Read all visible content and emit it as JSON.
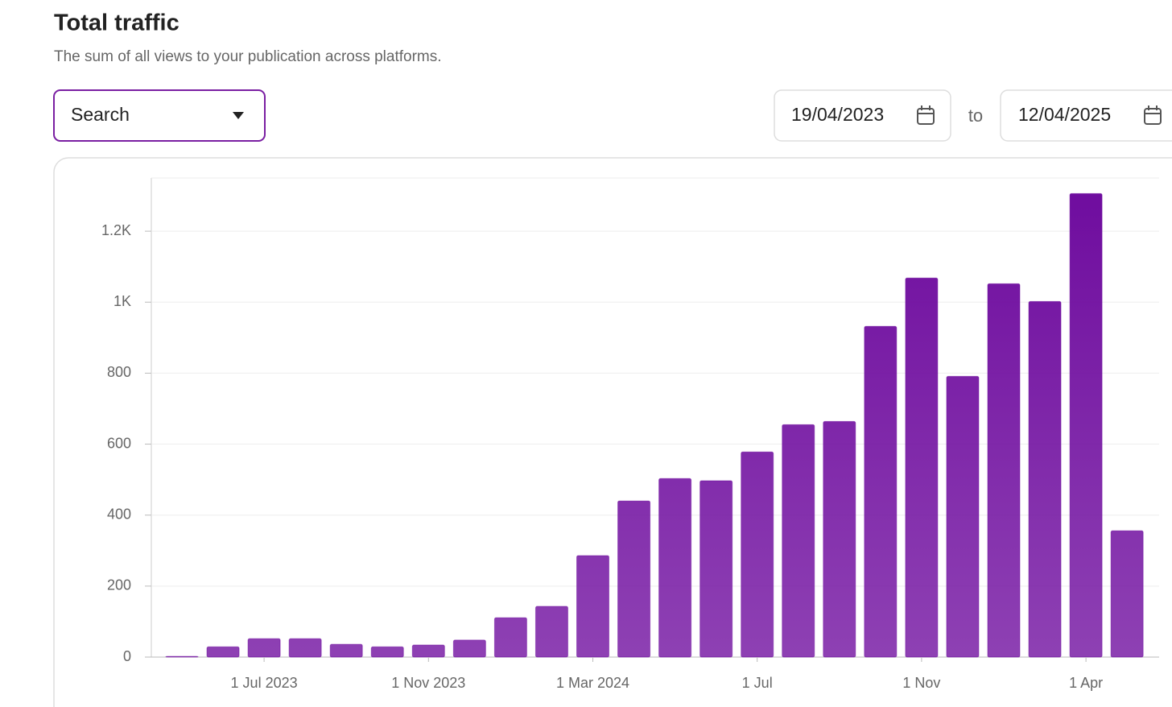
{
  "header": {
    "title": "Total traffic",
    "subtitle": "The sum of all views to your publication across platforms."
  },
  "controls": {
    "dropdown": "Search",
    "date_from": "19/04/2023",
    "separator": "to",
    "date_to": "12/04/2025"
  },
  "chart_data": {
    "type": "bar",
    "categories": [
      null,
      null,
      "1 Jul 2023",
      null,
      null,
      null,
      "1 Nov 2023",
      null,
      null,
      null,
      "1 Mar 2024",
      null,
      null,
      null,
      "1 Jul",
      null,
      null,
      null,
      "1 Nov",
      null,
      null,
      null,
      "1 Apr",
      null
    ],
    "values": [
      2,
      29,
      52,
      52,
      36,
      29,
      34,
      48,
      111,
      143,
      286,
      440,
      503,
      497,
      578,
      655,
      664,
      932,
      1068,
      791,
      1052,
      1002,
      1306,
      356
    ],
    "color": "#6e0b9e",
    "ylim": [
      0,
      1350
    ],
    "yticks": [
      0,
      200,
      400,
      600,
      800,
      {
        "value": 1000,
        "label": "1K"
      },
      {
        "value": 1200,
        "label": "1.2K"
      }
    ],
    "grid": true
  }
}
